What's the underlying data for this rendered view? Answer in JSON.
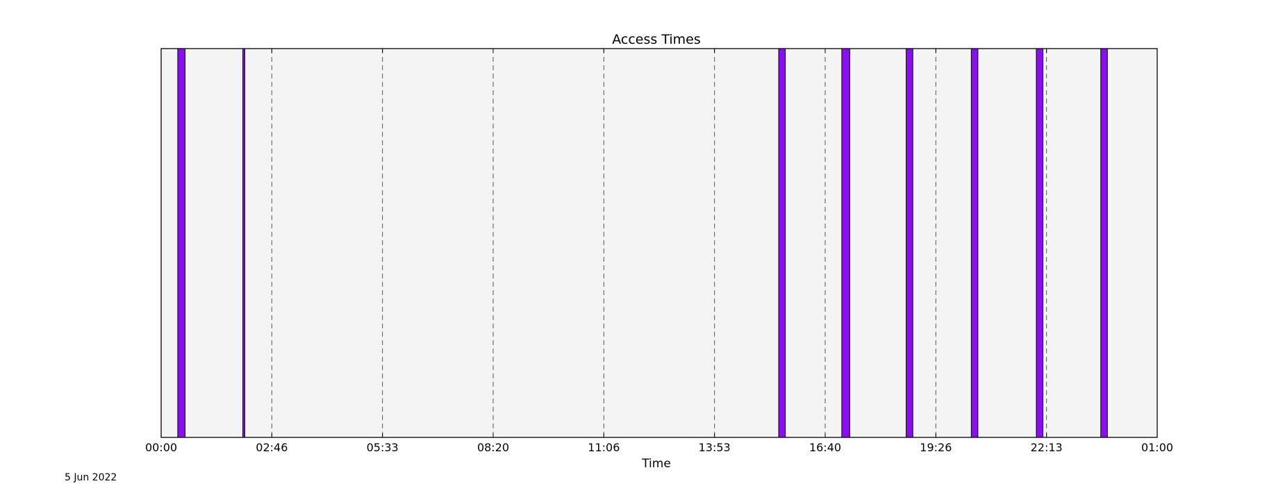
{
  "footer": {
    "date": "5 Jun 2022"
  },
  "chart_data": {
    "type": "bar",
    "title": "Access Times",
    "xlabel": "Time",
    "ylabel": "",
    "x_range": [
      "00:00",
      "01:00 (next day)"
    ],
    "x_tick_labels": [
      "00:00",
      "02:46",
      "05:33",
      "08:20",
      "11:06",
      "13:53",
      "16:40",
      "19:26",
      "22:13",
      "01:00"
    ],
    "grid": "vertical dashed lines at tick positions",
    "legend": "none",
    "y_axis": "no ticks, no labels",
    "access_periods": [
      {
        "start": "00:25",
        "end": "00:36"
      },
      {
        "start": "02:03",
        "end": "02:06"
      },
      {
        "start": "15:30",
        "end": "15:40"
      },
      {
        "start": "17:05",
        "end": "17:17"
      },
      {
        "start": "18:42",
        "end": "18:52"
      },
      {
        "start": "20:20",
        "end": "20:30"
      },
      {
        "start": "21:58",
        "end": "22:08"
      },
      {
        "start": "23:35",
        "end": "23:45"
      }
    ],
    "colors": {
      "bar_fill": "#8b0ef0",
      "bar_edge": "#000000",
      "plot_background": "#f4f4f4",
      "grid": "#555555"
    }
  }
}
